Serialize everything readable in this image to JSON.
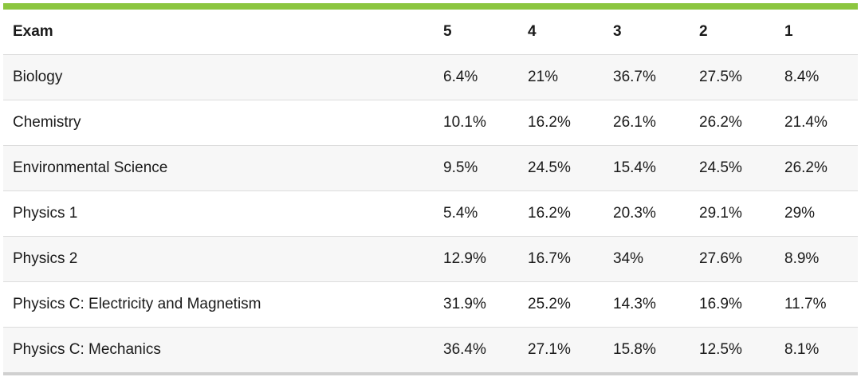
{
  "accent_color": "#8cc63f",
  "table": {
    "headers": [
      "Exam",
      "5",
      "4",
      "3",
      "2",
      "1"
    ],
    "rows": [
      [
        "Biology",
        "6.4%",
        "21%",
        "36.7%",
        "27.5%",
        "8.4%"
      ],
      [
        "Chemistry",
        "10.1%",
        "16.2%",
        "26.1%",
        "26.2%",
        "21.4%"
      ],
      [
        "Environmental Science",
        "9.5%",
        "24.5%",
        "15.4%",
        "24.5%",
        "26.2%"
      ],
      [
        "Physics 1",
        "5.4%",
        "16.2%",
        "20.3%",
        "29.1%",
        "29%"
      ],
      [
        "Physics 2",
        "12.9%",
        "16.7%",
        "34%",
        "27.6%",
        "8.9%"
      ],
      [
        "Physics C: Electricity and Magnetism",
        "31.9%",
        "25.2%",
        "14.3%",
        "16.9%",
        "11.7%"
      ],
      [
        "Physics C: Mechanics",
        "36.4%",
        "27.1%",
        "15.8%",
        "12.5%",
        "8.1%"
      ]
    ]
  }
}
